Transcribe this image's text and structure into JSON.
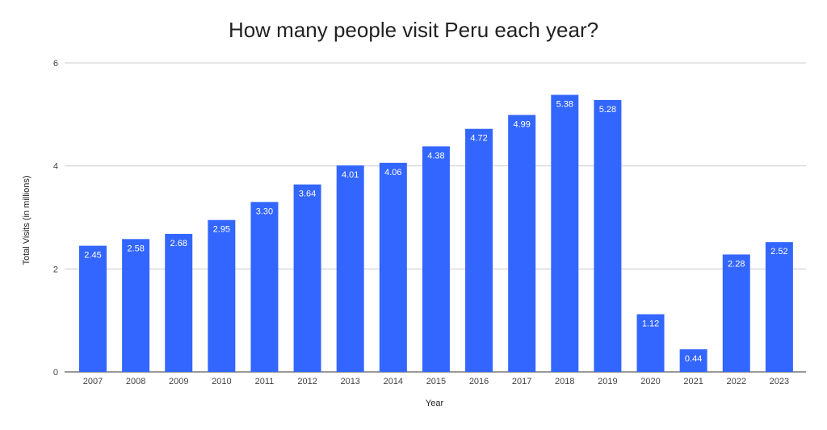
{
  "chart_data": {
    "type": "bar",
    "title": "How many people visit Peru each year?",
    "xlabel": "Year",
    "ylabel": "Total Visits (in millions)",
    "categories": [
      "2007",
      "2008",
      "2009",
      "2010",
      "2011",
      "2012",
      "2013",
      "2014",
      "2015",
      "2016",
      "2017",
      "2018",
      "2019",
      "2020",
      "2021",
      "2022",
      "2023"
    ],
    "values": [
      2.45,
      2.58,
      2.68,
      2.95,
      3.3,
      3.64,
      4.01,
      4.06,
      4.38,
      4.72,
      4.99,
      5.38,
      5.28,
      1.12,
      0.44,
      2.28,
      2.52
    ],
    "value_labels": [
      "2.45",
      "2.58",
      "2.68",
      "2.95",
      "3.30",
      "3.64",
      "4.01",
      "4.06",
      "4.38",
      "4.72",
      "4.99",
      "5.38",
      "5.28",
      "1.12",
      "0.44",
      "2.28",
      "2.52"
    ],
    "ylim": [
      0,
      6
    ],
    "yticks": [
      "0",
      "2",
      "4",
      "6"
    ],
    "grid": true,
    "bar_color": "#3366ff",
    "grid_color": "#cccccc"
  }
}
